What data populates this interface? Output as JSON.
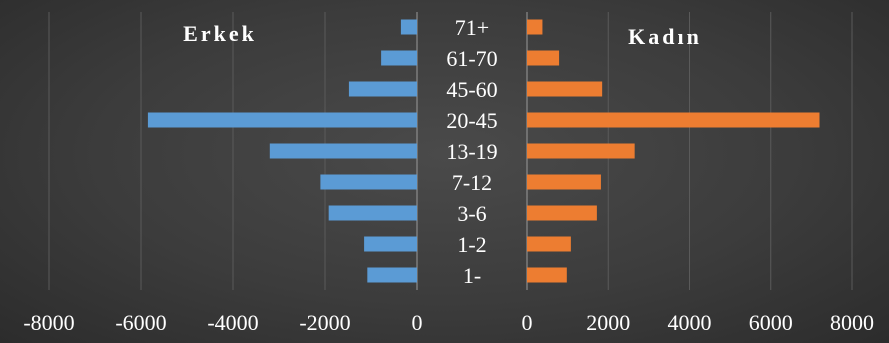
{
  "chart_data": [
    {
      "type": "bar",
      "orientation": "horizontal",
      "title": "Erkek",
      "categories": [
        "71+",
        "61-70",
        "45-60",
        "20-45",
        "13-19",
        "7-12",
        "3-6",
        "1-2",
        "1-"
      ],
      "values": [
        -350,
        -780,
        -1480,
        -5850,
        -3200,
        -2100,
        -1920,
        -1150,
        -1080
      ],
      "xlim": [
        -8000,
        0
      ],
      "xticks": [
        "-8000",
        "-6000",
        "-4000",
        "-2000",
        "0"
      ],
      "xtick_values": [
        -8000,
        -6000,
        -4000,
        -2000,
        0
      ],
      "color": "#5b9bd5",
      "grid": true
    },
    {
      "type": "bar",
      "orientation": "horizontal",
      "title": "Kadın",
      "categories": [
        "71+",
        "61-70",
        "45-60",
        "20-45",
        "13-19",
        "7-12",
        "3-6",
        "1-2",
        "1-"
      ],
      "values": [
        380,
        790,
        1850,
        7200,
        2650,
        1820,
        1720,
        1080,
        980
      ],
      "xlim": [
        0,
        8000
      ],
      "xticks": [
        "0",
        "2000",
        "4000",
        "6000",
        "8000"
      ],
      "xtick_values": [
        0,
        2000,
        4000,
        6000,
        8000
      ],
      "color": "#ed7d31",
      "grid": true
    }
  ],
  "background_color": "#3c3c3c",
  "text_color": "#ffffff"
}
